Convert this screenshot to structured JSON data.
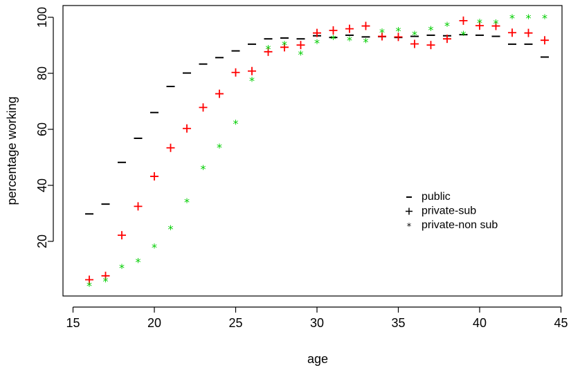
{
  "chart_data": {
    "type": "scatter",
    "xlabel": "age",
    "ylabel": "percentage working",
    "xlim": [
      15,
      45
    ],
    "ylim": [
      0,
      100
    ],
    "xticks": [
      15,
      20,
      25,
      30,
      35,
      40,
      45
    ],
    "yticks": [
      20,
      40,
      60,
      80,
      100
    ],
    "legend": {
      "placement": "center-right"
    },
    "series": [
      {
        "name": "public",
        "marker": "dash",
        "color": "#000000",
        "x": [
          16,
          17,
          18,
          19,
          20,
          21,
          22,
          23,
          24,
          25,
          26,
          27,
          28,
          29,
          30,
          31,
          32,
          33,
          34,
          35,
          36,
          37,
          38,
          39,
          40,
          41,
          42,
          43,
          44
        ],
        "values": [
          29.8,
          33.3,
          48.2,
          56.8,
          66.0,
          75.3,
          80.1,
          83.3,
          85.6,
          88.0,
          90.4,
          92.3,
          92.6,
          92.3,
          93.4,
          92.8,
          93.6,
          93.0,
          93.1,
          92.8,
          93.2,
          93.6,
          93.4,
          93.8,
          93.6,
          93.2,
          90.4,
          90.4,
          85.8
        ]
      },
      {
        "name": "private-sub",
        "marker": "plus",
        "color": "#ff0000",
        "x": [
          16,
          17,
          18,
          19,
          20,
          21,
          22,
          23,
          24,
          25,
          26,
          27,
          28,
          29,
          30,
          31,
          32,
          33,
          34,
          35,
          36,
          37,
          38,
          39,
          40,
          41,
          42,
          43,
          44
        ],
        "values": [
          6.3,
          7.7,
          22.2,
          32.5,
          43.2,
          53.4,
          60.3,
          67.8,
          72.7,
          80.3,
          80.8,
          87.7,
          89.3,
          90.1,
          94.4,
          95.3,
          95.9,
          96.9,
          93.2,
          93.0,
          90.5,
          90.1,
          92.3,
          98.8,
          97.0,
          96.9,
          94.5,
          94.4,
          91.8
        ]
      },
      {
        "name": "private-non sub",
        "marker": "star",
        "color": "#00cd00",
        "x": [
          16,
          17,
          18,
          19,
          20,
          21,
          22,
          23,
          24,
          25,
          26,
          27,
          28,
          29,
          30,
          31,
          32,
          33,
          34,
          35,
          36,
          37,
          38,
          39,
          40,
          41,
          42,
          43,
          44
        ],
        "values": [
          4.2,
          5.8,
          10.6,
          12.7,
          17.9,
          24.4,
          34.1,
          45.9,
          53.6,
          62.1,
          77.4,
          88.8,
          90.3,
          86.8,
          90.9,
          92.3,
          91.8,
          91.2,
          94.7,
          95.2,
          93.8,
          95.6,
          97.0,
          93.8,
          98.2,
          97.9,
          99.8,
          99.8,
          99.8
        ]
      }
    ]
  }
}
